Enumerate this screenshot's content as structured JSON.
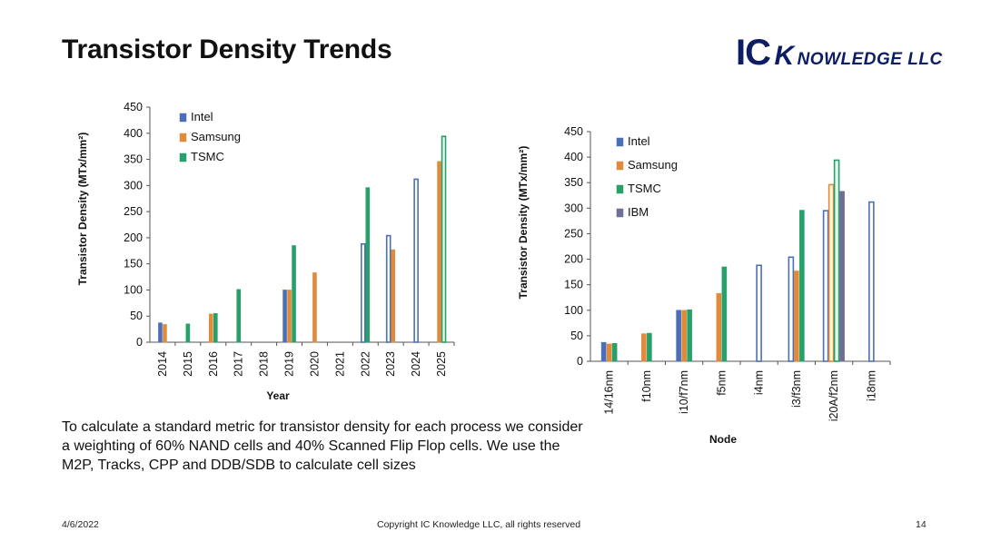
{
  "slide": {
    "title": "Transistor Density Trends",
    "logo_ic": "IC",
    "logo_k": "K",
    "logo_rest": "NOWLEDGE LLC",
    "description": "To calculate a standard metric for transistor density for each process we consider a weighting of 60% NAND cells and 40% Scanned Flip Flop cells. We use the M2P, Tracks, CPP and DDB/SDB to calculate cell sizes",
    "footer_date": "4/6/2022",
    "footer_copyright": "Copyright IC Knowledge LLC, all rights reserved",
    "footer_page": "14"
  },
  "colors": {
    "Intel": "#4a6fb8",
    "Samsung": "#e08a3c",
    "TSMC": "#27a06a",
    "IBM": "#6e6e96",
    "hollow_fill": "#ffffff",
    "hollow_fill_tsmc": "#e9f6ee",
    "hollow_fill_samsung": "#fdf6d6"
  },
  "chart_data": [
    {
      "type": "bar",
      "xlabel": "Year",
      "ylabel": "Transistor Density (MTx/mm²)",
      "ylim": [
        0,
        450
      ],
      "yticks": [
        0,
        50,
        100,
        150,
        200,
        250,
        300,
        350,
        400,
        450
      ],
      "categories": [
        "2014",
        "2015",
        "2016",
        "2017",
        "2018",
        "2019",
        "2020",
        "2021",
        "2022",
        "2023",
        "2024",
        "2025"
      ],
      "legend_position": "top-left",
      "series": [
        {
          "name": "Intel",
          "values": [
            37,
            null,
            null,
            null,
            null,
            100,
            null,
            null,
            188,
            204,
            312,
            null
          ],
          "hollow": [
            false,
            false,
            false,
            false,
            false,
            false,
            false,
            false,
            true,
            true,
            true,
            false
          ]
        },
        {
          "name": "Samsung",
          "values": [
            34,
            null,
            54,
            null,
            null,
            100,
            133,
            null,
            null,
            177,
            null,
            346
          ],
          "hollow": [
            false,
            false,
            false,
            false,
            false,
            false,
            false,
            false,
            false,
            false,
            false,
            false
          ]
        },
        {
          "name": "TSMC",
          "values": [
            null,
            35,
            55,
            101,
            null,
            185,
            null,
            null,
            296,
            null,
            null,
            394
          ],
          "hollow": [
            false,
            false,
            false,
            false,
            false,
            false,
            false,
            false,
            false,
            false,
            false,
            true
          ]
        }
      ]
    },
    {
      "type": "bar",
      "xlabel": "Node",
      "ylabel": "Transistor Density (MTx/mm²)",
      "ylim": [
        0,
        450
      ],
      "yticks": [
        0,
        50,
        100,
        150,
        200,
        250,
        300,
        350,
        400,
        450
      ],
      "categories": [
        "14/16nm",
        "f10nm",
        "i10/f7nm",
        "f5nm",
        "i4nm",
        "i3/f3nm",
        "i20A/f2nm",
        "i18nm"
      ],
      "legend_position": "top-left",
      "series": [
        {
          "name": "Intel",
          "values": [
            37,
            null,
            100,
            null,
            188,
            204,
            295,
            312
          ],
          "hollow": [
            false,
            false,
            false,
            false,
            true,
            true,
            true,
            true
          ]
        },
        {
          "name": "Samsung",
          "values": [
            34,
            54,
            100,
            133,
            null,
            177,
            346,
            null
          ],
          "hollow": [
            false,
            false,
            false,
            false,
            false,
            false,
            true,
            false
          ]
        },
        {
          "name": "TSMC",
          "values": [
            35,
            55,
            101,
            185,
            null,
            296,
            394,
            null
          ],
          "hollow": [
            false,
            false,
            false,
            false,
            false,
            false,
            true,
            false
          ]
        },
        {
          "name": "IBM",
          "values": [
            null,
            null,
            null,
            null,
            null,
            null,
            333,
            null
          ],
          "hollow": [
            false,
            false,
            false,
            false,
            false,
            false,
            false,
            false
          ]
        }
      ]
    }
  ]
}
